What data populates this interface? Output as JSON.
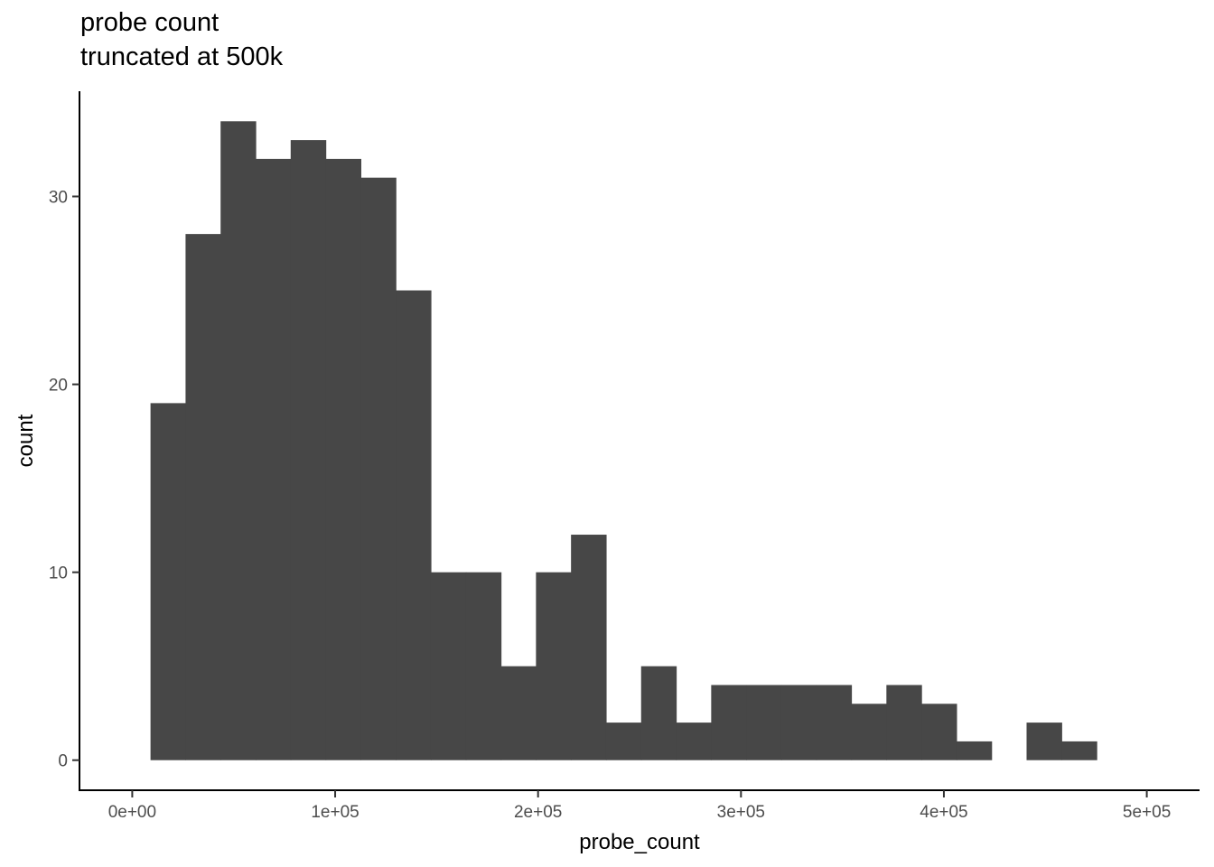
{
  "chart_data": {
    "type": "histogram",
    "title": "probe count",
    "subtitle": "truncated at 500k",
    "xlabel": "probe_count",
    "ylabel": "count",
    "bins": {
      "x_start": 9000,
      "bin_width": 17270,
      "counts": [
        19,
        28,
        34,
        32,
        33,
        32,
        31,
        25,
        10,
        10,
        5,
        10,
        12,
        2,
        5,
        2,
        4,
        4,
        4,
        4,
        3,
        4,
        3,
        1,
        0,
        2,
        1
      ]
    },
    "x_ticks": [
      {
        "value": 0,
        "label": "0e+00"
      },
      {
        "value": 100000,
        "label": "1e+05"
      },
      {
        "value": 200000,
        "label": "2e+05"
      },
      {
        "value": 300000,
        "label": "3e+05"
      },
      {
        "value": 400000,
        "label": "4e+05"
      },
      {
        "value": 500000,
        "label": "5e+05"
      }
    ],
    "y_ticks": [
      {
        "value": 0,
        "label": "0"
      },
      {
        "value": 10,
        "label": "10"
      },
      {
        "value": 20,
        "label": "20"
      },
      {
        "value": 30,
        "label": "30"
      }
    ],
    "xlim": [
      -26000,
      526000
    ],
    "ylim": [
      -1.6,
      35.6
    ],
    "grid": false,
    "legend": "none",
    "bar_color": "#474747"
  }
}
